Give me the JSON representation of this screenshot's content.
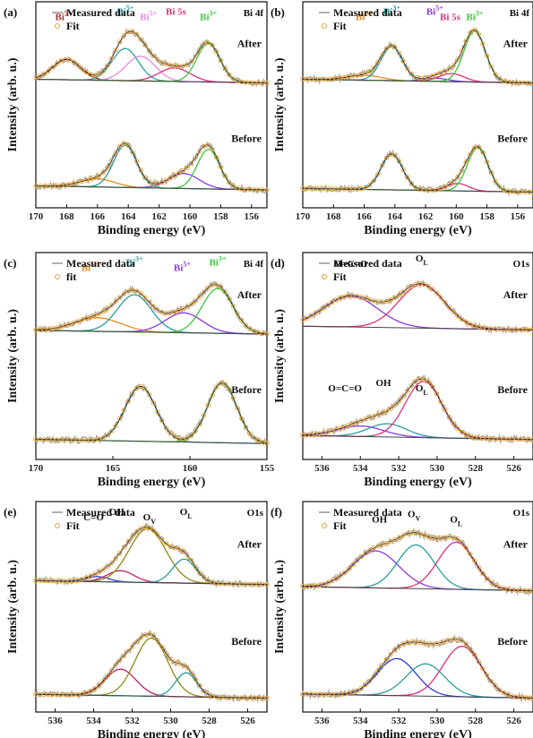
{
  "chart_data": [
    {
      "type": "line",
      "panel": "(a)",
      "core_level": "Bi 4f",
      "xlabel": "Binding energy (eV)",
      "ylabel": "Intensity (arb. u.)",
      "xlim": [
        170,
        155
      ],
      "ticks": [
        170,
        168,
        166,
        164,
        162,
        160,
        158,
        156
      ],
      "legend": [
        "Measured data",
        "Fit"
      ],
      "states": [
        "After",
        "Before"
      ],
      "annotations": [
        {
          "text": "Bi",
          "sup": "5+",
          "color": "#b03030",
          "x": 168.2,
          "state": "After"
        },
        {
          "text": "Bi",
          "sup": "5+",
          "color": "#2a9d9d",
          "x": 164.2,
          "state": "After"
        },
        {
          "text": "Bi",
          "sup": "5+",
          "color": "#e68ae6",
          "x": 162.7,
          "state": "After"
        },
        {
          "text": "Bi 5s",
          "sup": "",
          "color": "#e0307a",
          "x": 160.9,
          "state": "After"
        },
        {
          "text": "Bi",
          "sup": "3+",
          "color": "#3cc83c",
          "x": 158.8,
          "state": "After"
        }
      ],
      "series": [
        {
          "state": "After",
          "component": "Bi5+ 4f5/2 (maroon)",
          "color": "#8b2a2a",
          "peaks": [
            [
              168.0,
              0.33,
              0.9
            ]
          ]
        },
        {
          "state": "After",
          "component": "Bi5+ 4f7/2 (teal)",
          "color": "#2a9d9d",
          "peaks": [
            [
              164.2,
              0.52,
              0.85
            ]
          ]
        },
        {
          "state": "After",
          "component": "Bi5+ (pink)",
          "color": "#e68ae6",
          "peaks": [
            [
              163.2,
              0.4,
              0.95
            ]
          ]
        },
        {
          "state": "After",
          "component": "Bi 5s (magenta)",
          "color": "#e0307a",
          "peaks": [
            [
              161.0,
              0.22,
              1.0
            ]
          ]
        },
        {
          "state": "After",
          "component": "Bi3+ (green)",
          "color": "#3cc83c",
          "peaks": [
            [
              158.8,
              0.62,
              0.75
            ]
          ]
        },
        {
          "state": "Before",
          "component": "orange",
          "color": "#e88a1a",
          "peaks": [
            [
              166.0,
              0.12,
              1.1
            ]
          ]
        },
        {
          "state": "Before",
          "component": "teal",
          "color": "#2a9d9d",
          "peaks": [
            [
              164.2,
              0.62,
              0.75
            ]
          ]
        },
        {
          "state": "Before",
          "component": "purple",
          "color": "#8a3ae0",
          "peaks": [
            [
              160.4,
              0.22,
              1.0
            ]
          ]
        },
        {
          "state": "Before",
          "component": "green",
          "color": "#3cc83c",
          "peaks": [
            [
              158.8,
              0.58,
              0.72
            ]
          ]
        }
      ]
    },
    {
      "type": "line",
      "panel": "(b)",
      "core_level": "Bi 4f",
      "xlabel": "Binding energy (eV)",
      "ylabel": "Intensity (arb. u.)",
      "xlim": [
        170,
        155
      ],
      "ticks": [
        170,
        168,
        166,
        164,
        162,
        160,
        158,
        156
      ],
      "legend": [
        "Measured data",
        "Fit"
      ],
      "states": [
        "After",
        "Before"
      ],
      "annotations": [
        {
          "text": "Bi",
          "sup": "5+",
          "color": "#e88a1a",
          "x": 166.0,
          "state": "After"
        },
        {
          "text": "Bi",
          "sup": "3+",
          "color": "#2a9d9d",
          "x": 164.2,
          "state": "After"
        },
        {
          "text": "Bi 5s",
          "sup": "",
          "color": "#e0307a",
          "x": 160.4,
          "state": "After"
        },
        {
          "text": "Bi",
          "sup": "5+",
          "color": "#8a3ae0",
          "x": 161.4,
          "state": "After"
        },
        {
          "text": "Bi",
          "sup": "3+",
          "color": "#3cc83c",
          "x": 158.8,
          "state": "After"
        }
      ],
      "series": [
        {
          "state": "After",
          "component": "orange",
          "color": "#e88a1a",
          "peaks": [
            [
              166.0,
              0.08,
              1.1
            ]
          ]
        },
        {
          "state": "After",
          "component": "teal",
          "color": "#2a9d9d",
          "peaks": [
            [
              164.2,
              0.55,
              0.7
            ]
          ]
        },
        {
          "state": "After",
          "component": "purple",
          "color": "#8a3ae0",
          "peaks": [
            [
              161.3,
              0.05,
              0.8
            ]
          ]
        },
        {
          "state": "After",
          "component": "magenta",
          "color": "#e0307a",
          "peaks": [
            [
              160.3,
              0.13,
              0.8
            ]
          ]
        },
        {
          "state": "After",
          "component": "green",
          "color": "#3cc83c",
          "peaks": [
            [
              158.8,
              0.82,
              0.7
            ]
          ]
        },
        {
          "state": "Before",
          "component": "teal",
          "color": "#2a9d9d",
          "peaks": [
            [
              164.2,
              0.58,
              0.7
            ]
          ]
        },
        {
          "state": "Before",
          "component": "magenta",
          "color": "#e0307a",
          "peaks": [
            [
              159.9,
              0.12,
              0.7
            ]
          ]
        },
        {
          "state": "Before",
          "component": "green",
          "color": "#3cc83c",
          "peaks": [
            [
              158.6,
              0.7,
              0.68
            ]
          ]
        }
      ]
    },
    {
      "type": "line",
      "panel": "(c)",
      "core_level": "Bi 4f",
      "xlabel": "Binding energy (eV)",
      "ylabel": "Intensity (arb. u.)",
      "xlim": [
        170,
        155
      ],
      "ticks": [
        170,
        165,
        160,
        155
      ],
      "legend": [
        "Measured data",
        "fit"
      ],
      "states": [
        "After",
        "Before"
      ],
      "annotations": [
        {
          "text": "Bi",
          "sup": "5+",
          "color": "#e88a1a",
          "x": 166.5,
          "state": "After"
        },
        {
          "text": "Bi",
          "sup": "3+",
          "color": "#2a9d9d",
          "x": 163.6,
          "state": "After"
        },
        {
          "text": "Bi",
          "sup": "5+",
          "color": "#8a3ae0",
          "x": 160.5,
          "state": "After"
        },
        {
          "text": "Bi",
          "sup": "3+",
          "color": "#3cc83c",
          "x": 158.2,
          "state": "After"
        }
      ],
      "series": [
        {
          "state": "After",
          "component": "orange",
          "color": "#e88a1a",
          "peaks": [
            [
              166.0,
              0.22,
              1.5
            ]
          ]
        },
        {
          "state": "After",
          "component": "teal",
          "color": "#2a9d9d",
          "peaks": [
            [
              163.6,
              0.6,
              1.1
            ]
          ]
        },
        {
          "state": "After",
          "component": "purple",
          "color": "#8a3ae0",
          "peaks": [
            [
              160.4,
              0.32,
              1.2
            ]
          ]
        },
        {
          "state": "After",
          "component": "green",
          "color": "#3cc83c",
          "peaks": [
            [
              158.2,
              0.72,
              1.0
            ]
          ]
        },
        {
          "state": "Before",
          "component": "teal",
          "color": "#2a9d9d",
          "peaks": [
            [
              163.2,
              0.78,
              1.0
            ]
          ]
        },
        {
          "state": "Before",
          "component": "green",
          "color": "#3cc83c",
          "peaks": [
            [
              157.9,
              0.85,
              0.95
            ]
          ]
        }
      ]
    },
    {
      "type": "line",
      "panel": "(d)",
      "core_level": "O1s",
      "xlabel": "Binding energy (eV)",
      "ylabel": "Intensity (arb. u.)",
      "xlim": [
        537,
        525
      ],
      "ticks": [
        536,
        534,
        532,
        530,
        528,
        526
      ],
      "legend": [
        "Measured data",
        "Fit"
      ],
      "states": [
        "After",
        "Before"
      ],
      "annotations": [
        {
          "text": "O=C=O",
          "sup": "",
          "color": "#111111",
          "x": 534.5,
          "state": "After"
        },
        {
          "text": "O",
          "sub": "L",
          "color": "#111111",
          "x": 530.8,
          "state": "After"
        },
        {
          "text": "O",
          "sub": "L",
          "color": "#111111",
          "x": 530.8,
          "state": "Before"
        },
        {
          "text": "OH",
          "sup": "",
          "color": "#111111",
          "x": 532.8,
          "state": "Before"
        },
        {
          "text": "O=C=O",
          "sup": "",
          "color": "#111111",
          "x": 534.8,
          "state": "Before"
        }
      ],
      "series": [
        {
          "state": "After",
          "component": "purple",
          "color": "#8a3ae0",
          "peaks": [
            [
              534.5,
              0.5,
              1.4
            ]
          ]
        },
        {
          "state": "After",
          "component": "magenta",
          "color": "#e0307a",
          "peaks": [
            [
              530.8,
              0.7,
              1.2
            ]
          ]
        },
        {
          "state": "Before",
          "component": "purple",
          "color": "#8a3ae0",
          "peaks": [
            [
              534.0,
              0.16,
              1.2
            ]
          ]
        },
        {
          "state": "Before",
          "component": "teal",
          "color": "#2a9d9d",
          "peaks": [
            [
              532.6,
              0.2,
              1.0
            ]
          ]
        },
        {
          "state": "Before",
          "component": "magenta",
          "color": "#e0307a",
          "peaks": [
            [
              530.7,
              0.85,
              0.95
            ]
          ]
        }
      ]
    },
    {
      "type": "line",
      "panel": "(e)",
      "core_level": "O1s",
      "xlabel": "Binding energy (eV)",
      "ylabel": "Intensity (arb. u.)",
      "xlim": [
        537,
        525
      ],
      "ticks": [
        536,
        534,
        532,
        530,
        528,
        526
      ],
      "legend": [
        "Measured data",
        "Fit"
      ],
      "states": [
        "After",
        "Before"
      ],
      "annotations": [
        {
          "text": "C=O",
          "sup": "",
          "color": "#111111",
          "x": 534.0,
          "state": "After"
        },
        {
          "text": "OH",
          "sup": "",
          "color": "#111111",
          "x": 532.8,
          "state": "After"
        },
        {
          "text": "O",
          "sub": "V",
          "color": "#111111",
          "x": 531.1,
          "state": "After"
        },
        {
          "text": "O",
          "sub": "L",
          "color": "#111111",
          "x": 529.2,
          "state": "After"
        }
      ],
      "series": [
        {
          "state": "After",
          "component": "blue",
          "color": "#2a3ae0",
          "peaks": [
            [
              533.8,
              0.08,
              0.6
            ]
          ]
        },
        {
          "state": "After",
          "component": "magenta",
          "color": "#c02060",
          "peaks": [
            [
              532.6,
              0.18,
              0.7
            ]
          ]
        },
        {
          "state": "After",
          "component": "olive",
          "color": "#8a8a1a",
          "peaks": [
            [
              531.2,
              0.85,
              0.95
            ]
          ]
        },
        {
          "state": "After",
          "component": "teal",
          "color": "#2a9d9d",
          "peaks": [
            [
              529.3,
              0.38,
              0.6
            ]
          ]
        },
        {
          "state": "Before",
          "component": "magenta",
          "color": "#c02060",
          "peaks": [
            [
              532.6,
              0.42,
              0.8
            ]
          ]
        },
        {
          "state": "Before",
          "component": "olive",
          "color": "#8a8a1a",
          "peaks": [
            [
              531.0,
              0.92,
              0.85
            ]
          ]
        },
        {
          "state": "Before",
          "component": "teal",
          "color": "#2a9d9d",
          "peaks": [
            [
              529.2,
              0.38,
              0.55
            ]
          ]
        }
      ]
    },
    {
      "type": "line",
      "panel": "(f)",
      "core_level": "O1s",
      "xlabel": "Binding energy (eV)",
      "ylabel": "Intensity (arb. u.)",
      "xlim": [
        537,
        525
      ],
      "ticks": [
        536,
        534,
        532,
        530,
        528,
        526
      ],
      "legend": [
        "Measured data",
        "Fit"
      ],
      "states": [
        "After",
        "Before"
      ],
      "annotations": [
        {
          "text": "OH",
          "sup": "",
          "color": "#111111",
          "x": 533.0,
          "state": "After"
        },
        {
          "text": "O",
          "sub": "V",
          "color": "#111111",
          "x": 531.2,
          "state": "After"
        },
        {
          "text": "O",
          "sub": "L",
          "color": "#111111",
          "x": 529.0,
          "state": "After"
        }
      ],
      "series": [
        {
          "state": "After",
          "component": "purple",
          "color": "#8a3ae0",
          "peaks": [
            [
              533.2,
              0.55,
              1.2
            ]
          ]
        },
        {
          "state": "After",
          "component": "teal",
          "color": "#2a9d9d",
          "peaks": [
            [
              531.1,
              0.65,
              0.95
            ]
          ]
        },
        {
          "state": "After",
          "component": "magenta",
          "color": "#e0307a",
          "peaks": [
            [
              529.0,
              0.7,
              0.95
            ]
          ]
        },
        {
          "state": "Before",
          "component": "blue",
          "color": "#2a3ae0",
          "peaks": [
            [
              532.1,
              0.55,
              1.0
            ]
          ]
        },
        {
          "state": "Before",
          "component": "teal",
          "color": "#2a9d9d",
          "peaks": [
            [
              530.6,
              0.48,
              1.0
            ]
          ]
        },
        {
          "state": "Before",
          "component": "magenta",
          "color": "#e0307a",
          "peaks": [
            [
              528.7,
              0.75,
              1.0
            ]
          ]
        }
      ]
    }
  ],
  "colors": {
    "measured": "#b0b0b0",
    "fit_marker": "#e8a030",
    "fit_line": "#222222",
    "axis": "#111111"
  }
}
